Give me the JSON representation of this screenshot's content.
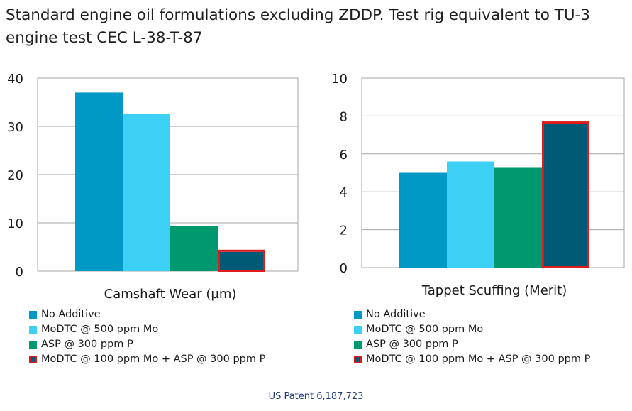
{
  "title": "Standard engine oil formulations excluding ZDDP. Test rig equivalent to TU-3 engine test CEC L-38-T-87",
  "footer": "US Patent 6,187,723",
  "colors": {
    "no_additive": "#0098c4",
    "modtc": "#3dd0f5",
    "asp": "#00986e",
    "combo": "#005a76",
    "highlight": "#e01b1b",
    "grid": "#a6a6a6"
  },
  "chart_data": [
    {
      "type": "bar",
      "xlabel": "Camshaft Wear (µm)",
      "ylim": [
        0,
        40
      ],
      "yticks": [
        0,
        10,
        20,
        30,
        40
      ],
      "grid": true,
      "legend_position": "bottom",
      "categories": [
        "No Additive",
        "MoDTC @ 500 ppm Mo",
        "ASP @ 300 ppm P",
        "MoDTC @ 100 ppm Mo + ASP @ 300 ppm P"
      ],
      "values": [
        37,
        32.5,
        9.3,
        4
      ],
      "highlighted": [
        false,
        false,
        false,
        true
      ]
    },
    {
      "type": "bar",
      "xlabel": "Tappet Scuffing (Merit)",
      "ylim": [
        0,
        10
      ],
      "yticks": [
        0,
        2,
        4,
        6,
        8,
        10
      ],
      "grid": true,
      "legend_position": "bottom",
      "categories": [
        "No Additive",
        "MoDTC @ 500 ppm Mo",
        "ASP @ 300 ppm P",
        "MoDTC @ 100 ppm Mo + ASP @ 300 ppm P"
      ],
      "values": [
        5,
        5.6,
        5.3,
        7.6
      ],
      "highlighted": [
        false,
        false,
        false,
        true
      ]
    }
  ]
}
